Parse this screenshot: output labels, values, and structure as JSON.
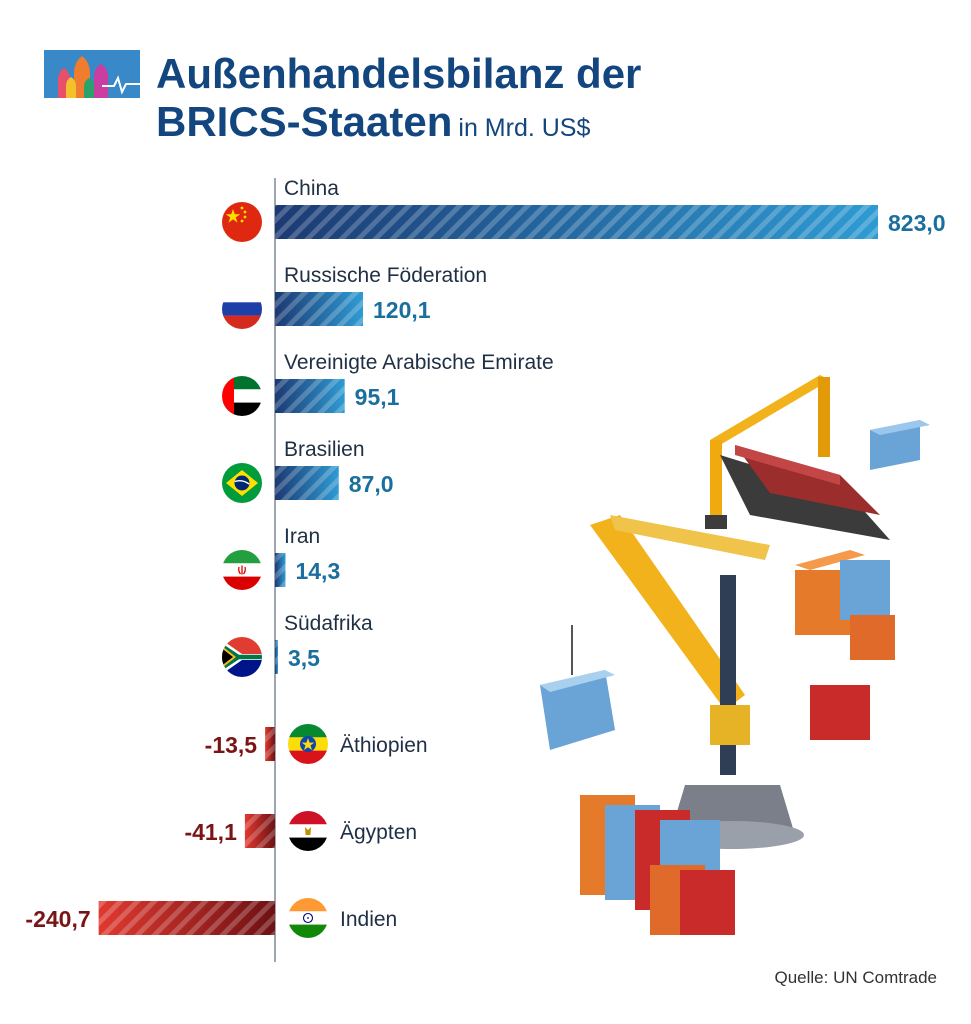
{
  "header": {
    "title_line1": "Außenhandelsbilanz der",
    "title_line2": "BRICS-Staaten",
    "unit": "in Mrd. US$"
  },
  "source": "Quelle: UN Comtrade",
  "colors": {
    "positive_dark": "#1c3a73",
    "positive_light": "#2f9bd3",
    "positive_label": "#1a6f9e",
    "negative_dark": "#6e1114",
    "negative_light": "#e0392f",
    "negative_label": "#7a1515",
    "title": "#13467f",
    "axis": "#7f8a97"
  },
  "chart_data": {
    "type": "bar",
    "orientation": "horizontal",
    "title": "Außenhandelsbilanz der BRICS-Staaten",
    "unit": "in Mrd. US$",
    "categories": [
      "China",
      "Russische Föderation",
      "Vereinigte Arabische Emirate",
      "Brasilien",
      "Iran",
      "Südafrika",
      "Äthiopien",
      "Ägypten",
      "Indien"
    ],
    "values": [
      823.0,
      120.1,
      95.1,
      87.0,
      14.3,
      3.5,
      -13.5,
      -41.1,
      -240.7
    ],
    "value_labels": [
      "823,0",
      "120,1",
      "95,1",
      "87,0",
      "14,3",
      "3,5",
      "-13,5",
      "-41,1",
      "-240,7"
    ],
    "flags": [
      "china-flag",
      "russia-flag",
      "uae-flag",
      "brazil-flag",
      "iran-flag",
      "south-africa-flag",
      "ethiopia-flag",
      "egypt-flag",
      "india-flag"
    ],
    "xlim": [
      -240.7,
      823.0
    ],
    "grid": false,
    "legend": "none"
  }
}
